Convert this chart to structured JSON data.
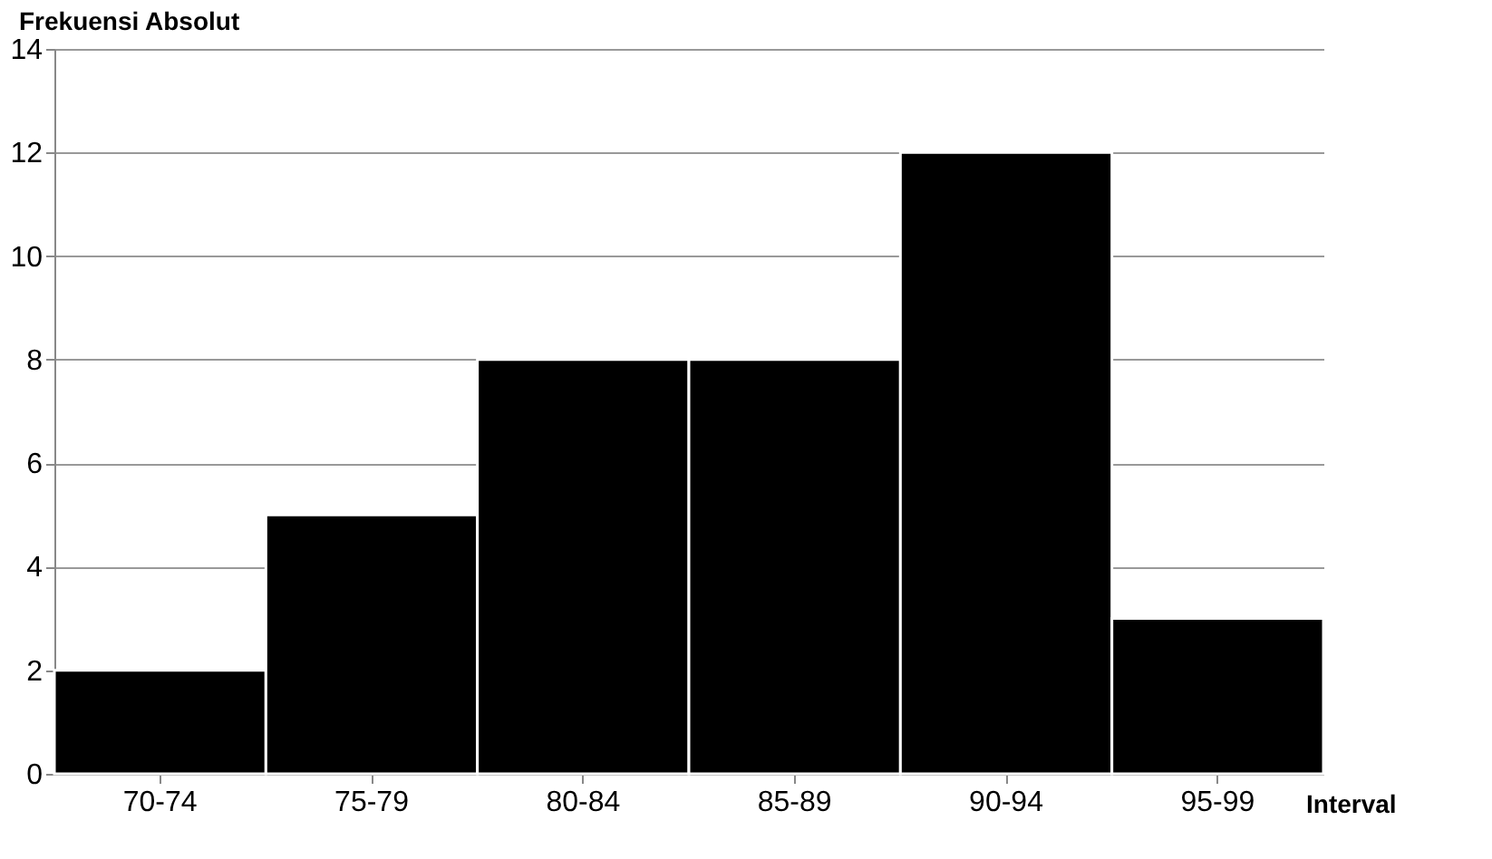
{
  "chart_data": {
    "type": "bar",
    "xlabel": "Interval",
    "ylabel": "Frekuensi Absolut",
    "categories": [
      "70-74",
      "75-79",
      "80-84",
      "85-89",
      "90-94",
      "95-99"
    ],
    "values": [
      2,
      5,
      8,
      8,
      12,
      3
    ],
    "color": "#000000",
    "ylim": [
      0,
      14
    ],
    "yticks": [
      0,
      2,
      4,
      6,
      8,
      10,
      12,
      14
    ],
    "grid": "y"
  }
}
